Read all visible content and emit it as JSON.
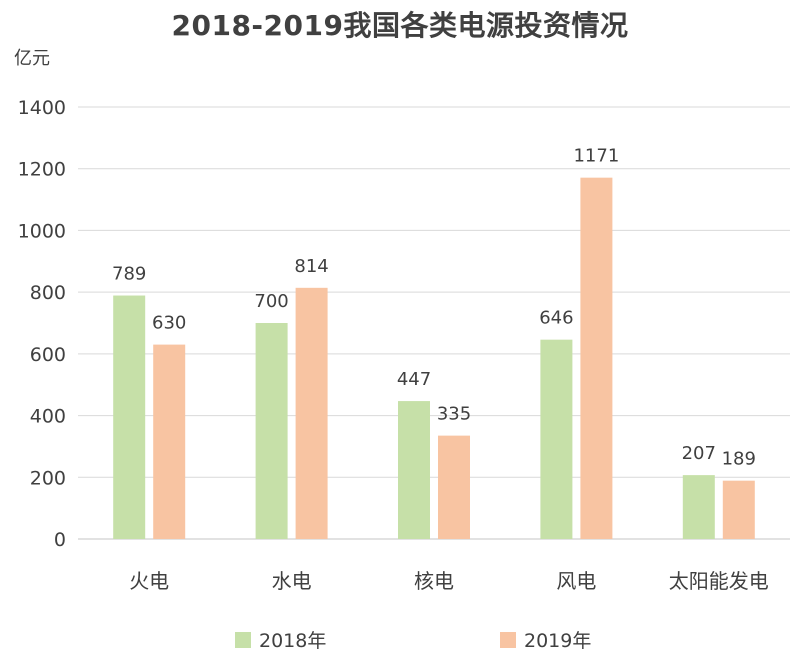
{
  "chart_data": {
    "type": "bar",
    "title": "2018-2019我国各类电源投资情况",
    "unit_label": "亿元",
    "categories": [
      "火电",
      "水电",
      "核电",
      "风电",
      "太阳能发电"
    ],
    "series": [
      {
        "name": "2018年",
        "values": [
          789,
          700,
          447,
          646,
          207
        ],
        "color": "#c6e0a8"
      },
      {
        "name": "2019年",
        "values": [
          630,
          814,
          335,
          1171,
          189
        ],
        "color": "#f8c4a2"
      }
    ],
    "ylim": [
      0,
      1400
    ],
    "yticks": [
      0,
      200,
      400,
      600,
      800,
      1000,
      1200,
      1400
    ],
    "grid": true,
    "legend_position": "bottom"
  },
  "colors": {
    "grid": "#d9d9d9",
    "text": "#404040"
  }
}
